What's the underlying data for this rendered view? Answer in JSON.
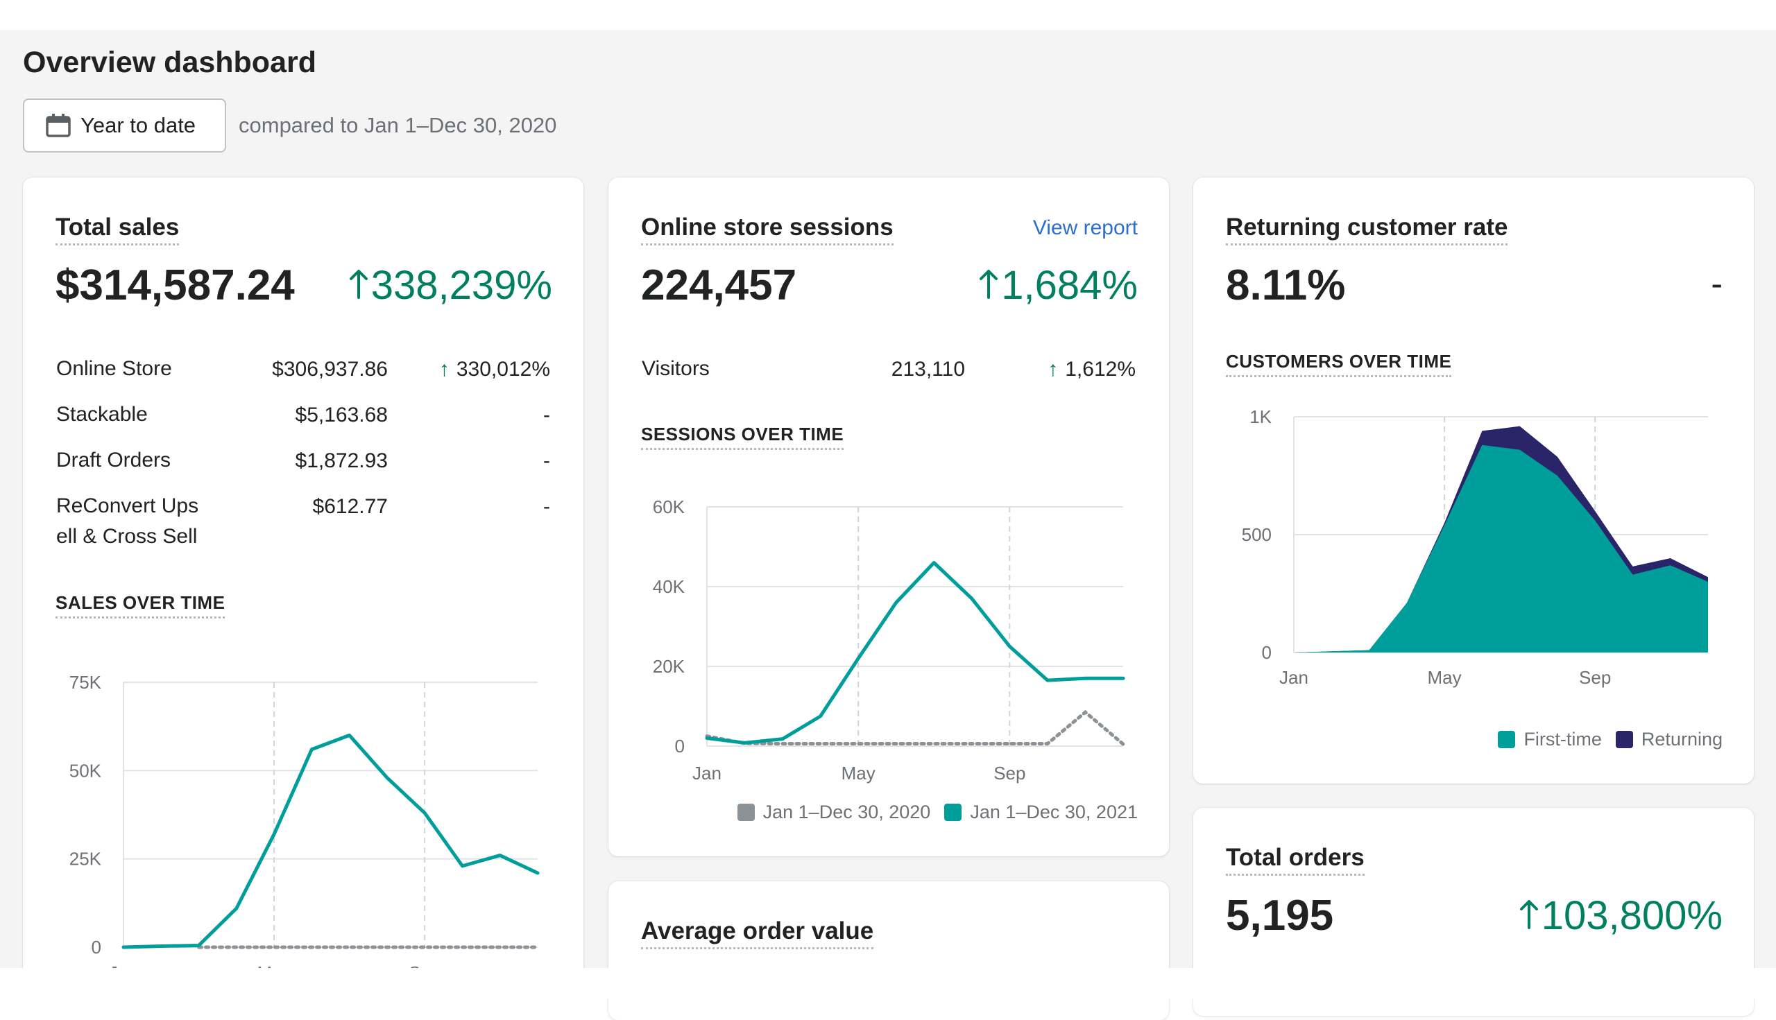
{
  "header": {
    "title": "Overview dashboard",
    "date_button": "Year to date",
    "compare_text": "compared to Jan 1–Dec 30, 2020"
  },
  "colors": {
    "accent": "#009e9b",
    "positive": "#008060",
    "link": "#2c6ecb",
    "returning": "#2a2469",
    "prior": "#8c9196"
  },
  "total_sales": {
    "title": "Total sales",
    "value": "$314,587.24",
    "change": "338,239%",
    "rows": [
      {
        "label": "Online Store",
        "value": "$306,937.86",
        "change": "330,012%"
      },
      {
        "label": "Stackable",
        "value": "$5,163.68",
        "change": "-"
      },
      {
        "label": "Draft Orders",
        "value": "$1,872.93",
        "change": "-"
      },
      {
        "label": "ReConvert Ups",
        "label2": "ell & Cross Sell",
        "value": "$612.77",
        "change": "-"
      }
    ],
    "section_label": "SALES OVER TIME"
  },
  "sessions": {
    "title": "Online store sessions",
    "view_report": "View report",
    "value": "224,457",
    "change": "1,684%",
    "visitors_label": "Visitors",
    "visitors_value": "213,110",
    "visitors_change": "1,612%",
    "section_label": "SESSIONS OVER TIME",
    "legend": [
      "Jan 1–Dec 30, 2020",
      "Jan 1–Dec 30, 2021"
    ]
  },
  "returning": {
    "title": "Returning customer rate",
    "value": "8.11%",
    "change": "-",
    "section_label": "CUSTOMERS OVER TIME",
    "legend": [
      "First-time",
      "Returning"
    ]
  },
  "total_orders": {
    "title": "Total orders",
    "value": "5,195",
    "change": "103,800%"
  },
  "aov": {
    "title": "Average order value"
  },
  "chart_data": [
    {
      "id": "sales",
      "type": "line",
      "y_ticks": [
        "0",
        "25K",
        "50K",
        "75K"
      ],
      "x_ticks": [
        "Jan",
        "May",
        "Sep"
      ],
      "ylim": [
        0,
        75000
      ],
      "x": [
        1,
        2,
        3,
        4,
        5,
        6,
        7,
        8,
        9,
        10,
        11,
        12
      ],
      "series": [
        {
          "name": "Jan 1–Dec 30, 2021",
          "values": [
            0,
            300,
            500,
            11000,
            32000,
            56000,
            60000,
            48000,
            38000,
            23000,
            26000,
            21000
          ]
        },
        {
          "name": "Jan 1–Dec 30, 2020",
          "values": [
            0,
            0,
            0,
            0,
            0,
            0,
            0,
            0,
            0,
            0,
            0,
            0
          ]
        }
      ],
      "grid": true
    },
    {
      "id": "sessions",
      "type": "line",
      "y_ticks": [
        "0",
        "20K",
        "40K",
        "60K"
      ],
      "x_ticks": [
        "Jan",
        "May",
        "Sep"
      ],
      "ylim": [
        0,
        60000
      ],
      "x": [
        1,
        2,
        3,
        4,
        5,
        6,
        7,
        8,
        9,
        10,
        11,
        12
      ],
      "series": [
        {
          "name": "Jan 1–Dec 30, 2021",
          "values": [
            2000,
            800,
            1800,
            7500,
            22000,
            36000,
            46000,
            37000,
            25000,
            16500,
            17000,
            17000
          ]
        },
        {
          "name": "Jan 1–Dec 30, 2020",
          "values": [
            2500,
            700,
            600,
            600,
            600,
            600,
            600,
            600,
            600,
            600,
            8500,
            500
          ]
        }
      ],
      "grid": true
    },
    {
      "id": "customers",
      "type": "area",
      "y_ticks": [
        "0",
        "500",
        "1K"
      ],
      "x_ticks": [
        "Jan",
        "May",
        "Sep"
      ],
      "ylim": [
        0,
        1000
      ],
      "x": [
        1,
        2,
        3,
        4,
        5,
        6,
        7,
        8,
        9,
        10,
        11,
        12
      ],
      "series": [
        {
          "name": "First-time",
          "values": [
            0,
            5,
            10,
            210,
            540,
            880,
            860,
            750,
            560,
            330,
            370,
            300
          ]
        },
        {
          "name": "Returning",
          "values": [
            0,
            0,
            0,
            0,
            10,
            60,
            100,
            80,
            40,
            35,
            30,
            20
          ]
        }
      ],
      "grid": true
    }
  ]
}
